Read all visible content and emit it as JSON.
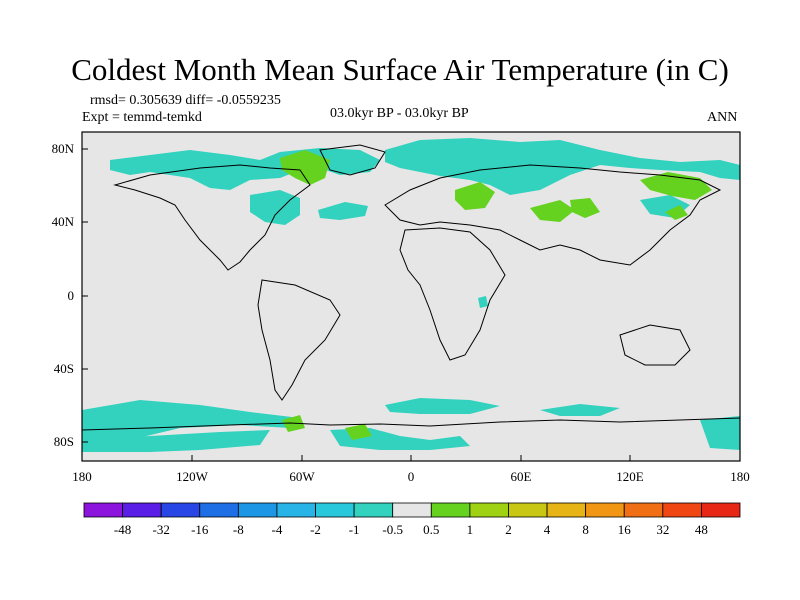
{
  "title": "Coldest Month Mean Surface Air Temperature (in C)",
  "stats": {
    "rmsd_diff": "rmsd= 0.305639  diff= -0.0559235",
    "expt": "Expt = temmd-temkd",
    "period": "03.0kyr BP - 03.0kyr BP",
    "season": "ANN"
  },
  "lat_ticks": [
    "80N",
    "40N",
    "0",
    "40S",
    "80S"
  ],
  "lon_ticks": [
    "180",
    "120W",
    "60W",
    "0",
    "60E",
    "120E",
    "180"
  ],
  "colorbar": {
    "labels": [
      "-48",
      "-32",
      "-16",
      "-8",
      "-4",
      "-2",
      "-1",
      "-0.5",
      "0.5",
      "1",
      "2",
      "4",
      "8",
      "16",
      "32",
      "48"
    ],
    "colors": [
      "#8c14dc",
      "#5a1ee6",
      "#2846e6",
      "#1e6ee6",
      "#1e96e6",
      "#28b4e6",
      "#28c8dc",
      "#32d2be",
      "#e6e6e6",
      "#64d21e",
      "#a0d214",
      "#c8c814",
      "#e6b414",
      "#f09614",
      "#f06e14",
      "#f04614",
      "#e62814"
    ]
  },
  "map": {
    "background": "#e6e6e6",
    "ocean_fill": "#e6e6e6",
    "cyan": "#32d2be",
    "teal": "#28c8dc",
    "green": "#64d21e"
  }
}
